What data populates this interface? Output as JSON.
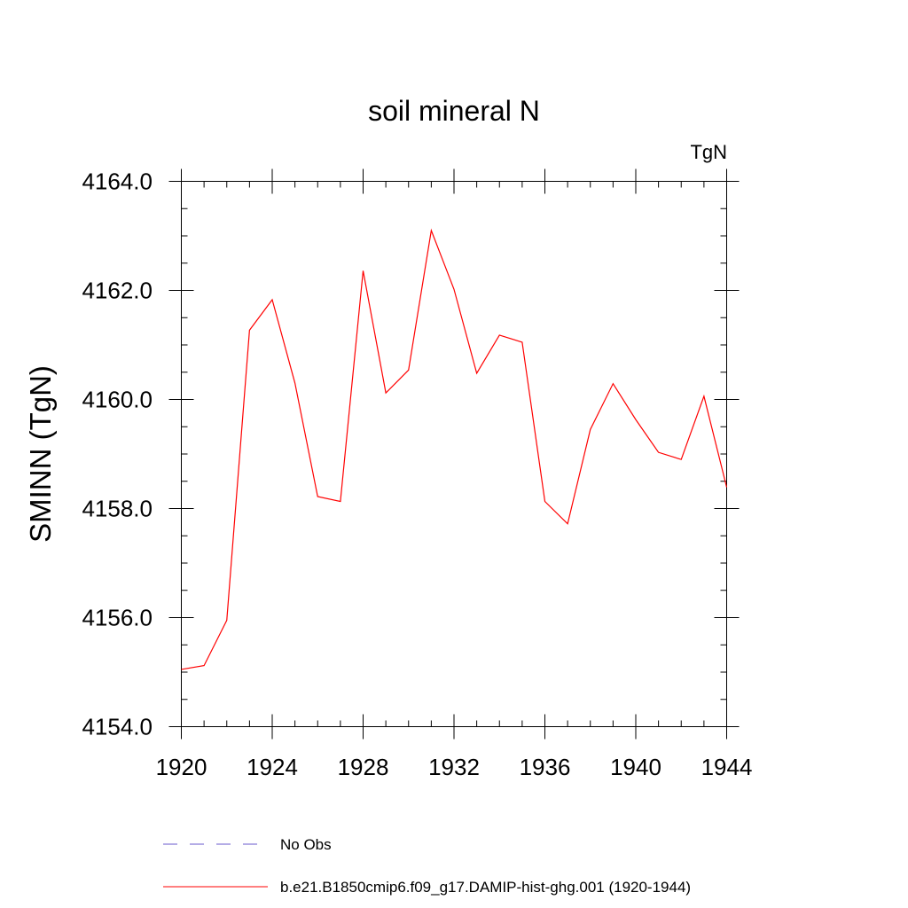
{
  "chart_data": {
    "type": "line",
    "title": "soil mineral N",
    "units_label": "TgN",
    "ylabel": "SMINN  (TgN)",
    "xlabel": "",
    "xlim": [
      1920,
      1944
    ],
    "ylim": [
      4154.0,
      4164.0
    ],
    "x_ticks": [
      1920,
      1924,
      1928,
      1932,
      1936,
      1940,
      1944
    ],
    "x_tick_labels": [
      "1920",
      "1924",
      "1928",
      "1932",
      "1936",
      "1940",
      "1944"
    ],
    "y_ticks": [
      4154,
      4156,
      4158,
      4160,
      4162,
      4164
    ],
    "y_tick_labels": [
      "4154.0",
      "4156.0",
      "4158.0",
      "4160.0",
      "4162.0",
      "4164.0"
    ],
    "grid": false,
    "legend_position": "bottom",
    "series": [
      {
        "name": "b.e21.B1850cmip6.f09_g17.DAMIP-hist-ghg.001 (1920-1944)",
        "color": "#ff0000",
        "style": "solid",
        "x": [
          1920,
          1921,
          1922,
          1923,
          1924,
          1925,
          1926,
          1927,
          1928,
          1929,
          1930,
          1931,
          1932,
          1933,
          1934,
          1935,
          1936,
          1937,
          1938,
          1939,
          1940,
          1941,
          1942,
          1943,
          1944
        ],
        "values": [
          4155.05,
          4155.12,
          4155.95,
          4161.27,
          4161.83,
          4160.3,
          4158.22,
          4158.13,
          4162.36,
          4160.12,
          4160.54,
          4163.1,
          4162.02,
          4160.48,
          4161.18,
          4161.05,
          4158.13,
          4157.72,
          4159.45,
          4160.29,
          4159.63,
          4159.03,
          4158.9,
          4160.06,
          4158.39
        ]
      },
      {
        "name": "No Obs",
        "color": "#6a5acd",
        "style": "dashed",
        "x": [],
        "values": []
      }
    ]
  }
}
